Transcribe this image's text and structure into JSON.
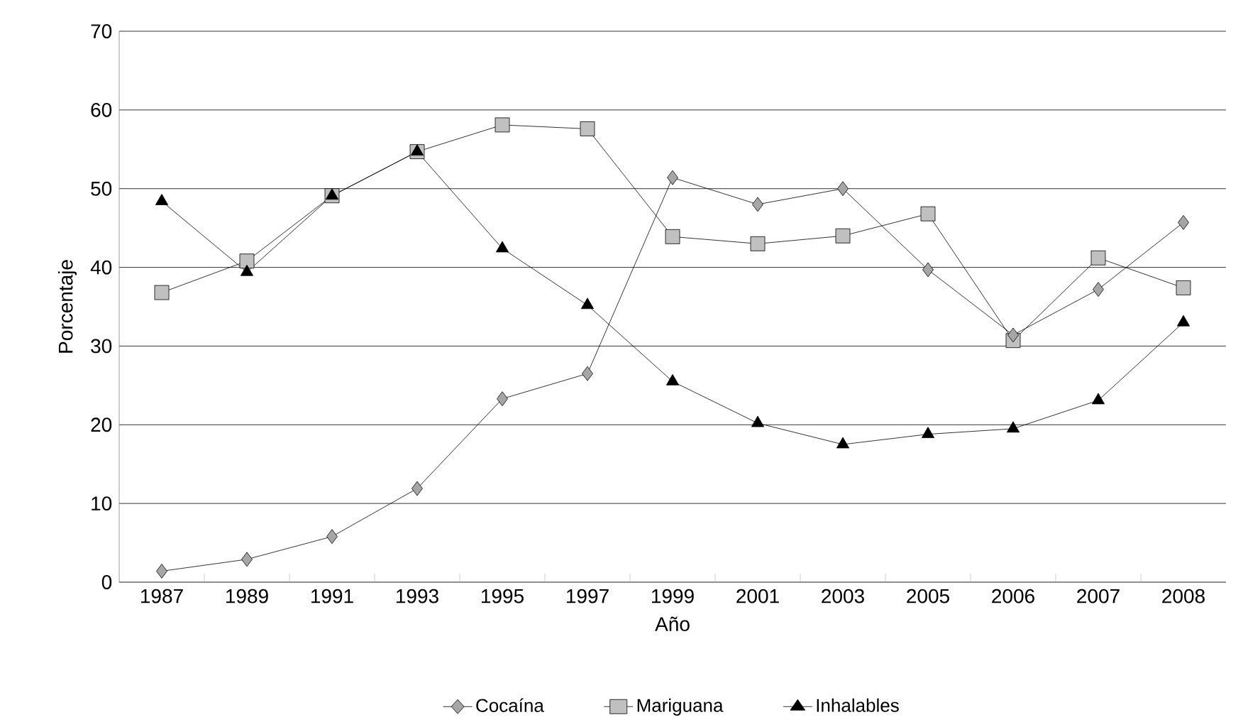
{
  "chart_data": {
    "type": "line",
    "xlabel": "Año",
    "ylabel": "Porcentaje",
    "categories": [
      "1987",
      "1989",
      "1991",
      "1993",
      "1995",
      "1997",
      "1999",
      "2001",
      "2003",
      "2005",
      "2006",
      "2007",
      "2008"
    ],
    "series": [
      {
        "name": "Cocaína",
        "color": "#a6a6a6",
        "marker": "diamond",
        "values": [
          1.4,
          2.9,
          5.8,
          11.9,
          23.3,
          26.5,
          51.4,
          48.0,
          50.0,
          39.7,
          31.4,
          37.2,
          45.7
        ]
      },
      {
        "name": "Mariguana",
        "color": "#c0c0c0",
        "marker": "square",
        "values": [
          36.8,
          40.8,
          49.1,
          54.7,
          58.1,
          57.6,
          43.9,
          43.0,
          44.0,
          46.8,
          30.7,
          41.2,
          37.4
        ]
      },
      {
        "name": "Inhalables",
        "color": "#000000",
        "marker": "triangle",
        "values": [
          48.4,
          39.4,
          49.1,
          54.7,
          42.4,
          35.2,
          25.5,
          20.2,
          17.5,
          18.8,
          19.5,
          23.1,
          33.0
        ]
      }
    ],
    "ylim": [
      0,
      70
    ],
    "yticks": [
      0,
      10,
      20,
      30,
      40,
      50,
      60,
      70
    ],
    "grid": "y",
    "legend": "bottom",
    "line_style": "solid"
  }
}
